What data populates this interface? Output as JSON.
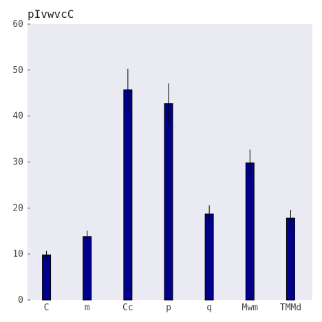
{
  "chart_data": {
    "type": "bar",
    "title": "pIvwvcC",
    "xlabel": "",
    "ylabel": "",
    "categories": [
      "C",
      "m",
      "Cc",
      "p",
      "q",
      "Mwm",
      "TMMd"
    ],
    "values": [
      9.8,
      13.8,
      45.7,
      42.7,
      18.7,
      29.8,
      17.8
    ],
    "errors": [
      0.9,
      1.3,
      4.6,
      4.4,
      1.9,
      2.9,
      1.8
    ],
    "ylim": [
      0,
      60
    ],
    "yticks": [
      0,
      10,
      20,
      30,
      40,
      50,
      60
    ],
    "grid": false,
    "colors": {
      "bar": "#00008b",
      "bar_edge": "#000000",
      "error": "#000000",
      "plot_bg": "#eaeaf2",
      "axis": "#000000"
    }
  }
}
